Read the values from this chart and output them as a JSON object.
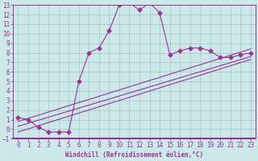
{
  "xlabel": "Windchill (Refroidissement éolien,°C)",
  "bg_color": "#cce8e8",
  "grid_color": "#aacccc",
  "line_color": "#993399",
  "spine_color": "#993399",
  "xlim": [
    -0.5,
    23.5
  ],
  "ylim": [
    -1,
    13
  ],
  "yticks": [
    -1,
    0,
    1,
    2,
    3,
    4,
    5,
    6,
    7,
    8,
    9,
    10,
    11,
    12,
    13
  ],
  "xticks": [
    0,
    1,
    2,
    3,
    4,
    5,
    6,
    7,
    8,
    9,
    10,
    11,
    12,
    13,
    14,
    15,
    16,
    17,
    18,
    19,
    20,
    21,
    22,
    23
  ],
  "main_x": [
    0,
    1,
    2,
    3,
    4,
    5,
    6,
    7,
    8,
    9,
    10,
    11,
    12,
    13,
    14,
    15,
    16,
    17,
    18,
    19,
    20,
    21,
    22,
    23
  ],
  "main_y": [
    1.2,
    1.0,
    0.2,
    -0.3,
    -0.3,
    -0.3,
    5.0,
    8.0,
    8.5,
    10.3,
    13.0,
    13.2,
    12.5,
    13.2,
    12.2,
    7.8,
    8.2,
    8.5,
    8.5,
    8.2,
    7.5,
    7.5,
    7.8,
    8.0
  ],
  "line2_x": [
    0,
    23
  ],
  "line2_y": [
    0.3,
    7.6
  ],
  "line3_x": [
    0,
    23
  ],
  "line3_y": [
    -0.3,
    7.3
  ],
  "line4_x": [
    0,
    23
  ],
  "line4_y": [
    0.8,
    8.4
  ],
  "tick_fontsize": 5.5,
  "xlabel_fontsize": 5.5
}
